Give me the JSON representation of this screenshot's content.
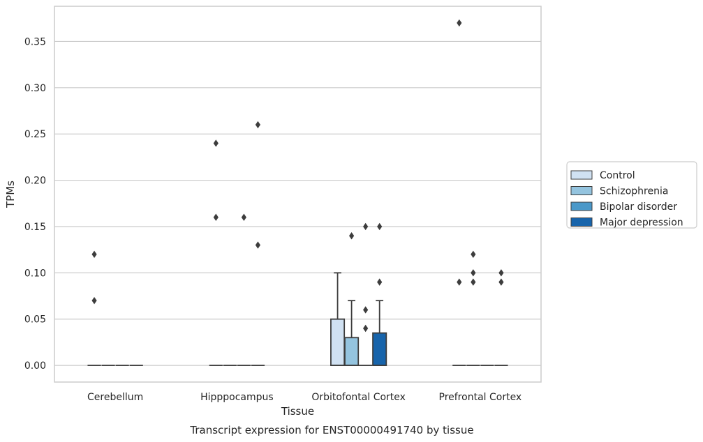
{
  "chart_data": {
    "type": "box",
    "title": "",
    "caption": "Transcript expression for ENST00000491740 by tissue",
    "xlabel": "Tissue",
    "ylabel": "TPMs",
    "ylim": [
      -0.018,
      0.388
    ],
    "yticks": [
      0.0,
      0.05,
      0.1,
      0.15,
      0.2,
      0.25,
      0.3,
      0.35
    ],
    "ytick_labels": [
      "0.00",
      "0.05",
      "0.10",
      "0.15",
      "0.20",
      "0.25",
      "0.30",
      "0.35"
    ],
    "grid": "horizontal",
    "legend_position": "right",
    "categories": [
      "Cerebellum",
      "Hipppocampus",
      "Orbitofontal Cortex",
      "Prefrontal Cortex"
    ],
    "series": [
      {
        "name": "Control",
        "color": "#d0e1f2",
        "boxes": [
          {
            "q1": 0,
            "median": 0,
            "q3": 0,
            "whisker_low": 0,
            "whisker_high": 0,
            "outliers": [
              0.07,
              0.12
            ]
          },
          {
            "q1": 0,
            "median": 0,
            "q3": 0,
            "whisker_low": 0,
            "whisker_high": 0,
            "outliers": [
              0.16,
              0.24
            ]
          },
          {
            "q1": 0,
            "median": 0,
            "q3": 0.05,
            "whisker_low": 0,
            "whisker_high": 0.1,
            "outliers": []
          },
          {
            "q1": 0,
            "median": 0,
            "q3": 0,
            "whisker_low": 0,
            "whisker_high": 0,
            "outliers": [
              0.09,
              0.37
            ]
          }
        ]
      },
      {
        "name": "Schizophrenia",
        "color": "#94c4df",
        "boxes": [
          {
            "q1": 0,
            "median": 0,
            "q3": 0,
            "whisker_low": 0,
            "whisker_high": 0,
            "outliers": []
          },
          {
            "q1": 0,
            "median": 0,
            "q3": 0,
            "whisker_low": 0,
            "whisker_high": 0,
            "outliers": []
          },
          {
            "q1": 0,
            "median": 0,
            "q3": 0.03,
            "whisker_low": 0,
            "whisker_high": 0.07,
            "outliers": [
              0.14
            ]
          },
          {
            "q1": 0,
            "median": 0,
            "q3": 0,
            "whisker_low": 0,
            "whisker_high": 0,
            "outliers": [
              0.09,
              0.1,
              0.12
            ]
          }
        ]
      },
      {
        "name": "Bipolar disorder",
        "color": "#4a98c9",
        "boxes": [
          {
            "q1": 0,
            "median": 0,
            "q3": 0,
            "whisker_low": 0,
            "whisker_high": 0,
            "outliers": []
          },
          {
            "q1": 0,
            "median": 0,
            "q3": 0,
            "whisker_low": 0,
            "whisker_high": 0,
            "outliers": [
              0.16
            ]
          },
          {
            "q1": 0,
            "median": 0,
            "q3": 0,
            "whisker_low": 0,
            "whisker_high": 0,
            "outliers": [
              0.04,
              0.06,
              0.15
            ]
          },
          {
            "q1": 0,
            "median": 0,
            "q3": 0,
            "whisker_low": 0,
            "whisker_high": 0,
            "outliers": []
          }
        ]
      },
      {
        "name": "Major depression",
        "color": "#1764ab",
        "boxes": [
          {
            "q1": 0,
            "median": 0,
            "q3": 0,
            "whisker_low": 0,
            "whisker_high": 0,
            "outliers": []
          },
          {
            "q1": 0,
            "median": 0,
            "q3": 0,
            "whisker_low": 0,
            "whisker_high": 0,
            "outliers": [
              0.13,
              0.26
            ]
          },
          {
            "q1": 0,
            "median": 0,
            "q3": 0.035,
            "whisker_low": 0,
            "whisker_high": 0.07,
            "outliers": [
              0.09,
              0.15
            ]
          },
          {
            "q1": 0,
            "median": 0,
            "q3": 0,
            "whisker_low": 0,
            "whisker_high": 0,
            "outliers": [
              0.09,
              0.1
            ]
          }
        ]
      }
    ],
    "colors": {
      "grid": "#cccccc",
      "frame": "#cccccc",
      "box_edge": "#3d3d3d",
      "outlier": "#3d3d3d",
      "text": "#262626"
    }
  }
}
